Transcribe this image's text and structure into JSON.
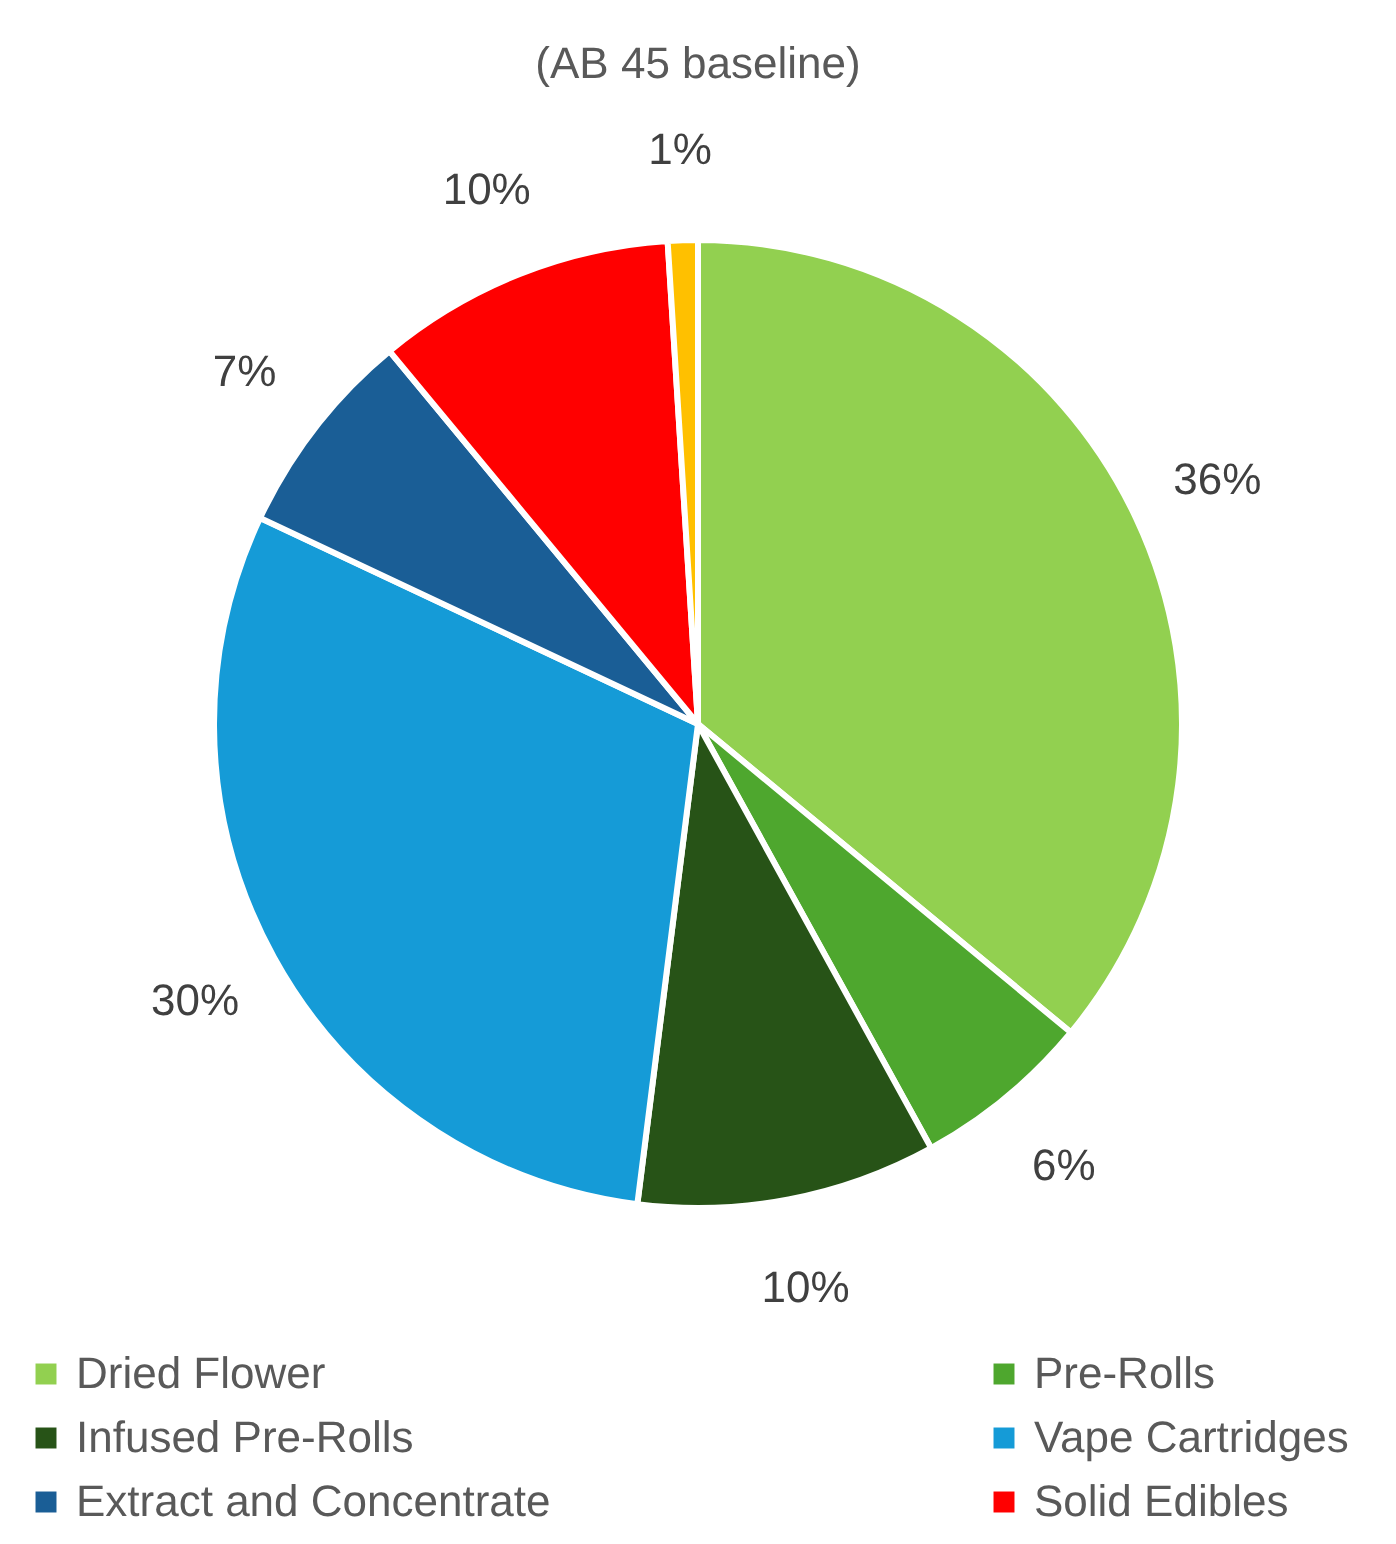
{
  "chart_data": {
    "type": "pie",
    "title": "(AB 45 baseline)",
    "categories": [
      "Dried Flower",
      "Pre-Rolls",
      "Infused Pre-Rolls",
      "Vape Cartridges",
      "Extract and Concentrate",
      "Solid Edibles",
      null
    ],
    "values": [
      36,
      6,
      10,
      30,
      7,
      10,
      1
    ],
    "value_labels": [
      "36%",
      "6%",
      "10%",
      "30%",
      "7%",
      "10%",
      "1%"
    ],
    "colors": [
      "#92d050",
      "#4ea72e",
      "#275317",
      "#159bd7",
      "#1a5e96",
      "#ff0000",
      "#ffc000"
    ],
    "legend": "bottom"
  }
}
